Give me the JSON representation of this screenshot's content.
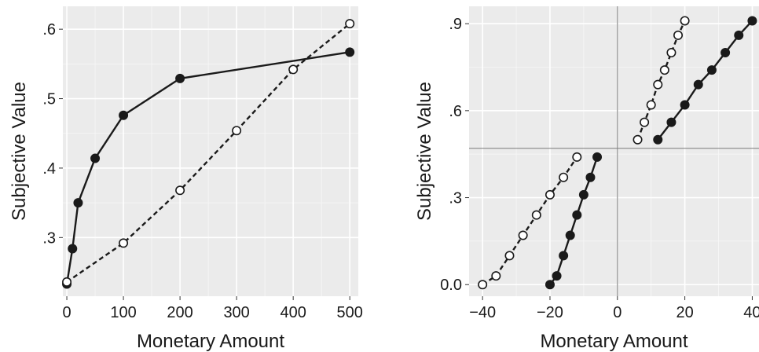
{
  "chart_data": [
    {
      "type": "line",
      "xlabel": "Monetary Amount",
      "ylabel": "Subjective Value",
      "xlim": [
        -7,
        515
      ],
      "ylim": [
        0.2155,
        0.633
      ],
      "xticks": [
        0,
        100,
        200,
        300,
        400,
        500
      ],
      "xtick_labels": [
        "0",
        "100",
        "200",
        "300",
        "400",
        "500"
      ],
      "yticks": [
        0.3,
        0.4,
        0.5,
        0.6
      ],
      "ytick_labels": [
        ".3",
        ".4",
        ".5",
        ".6"
      ],
      "grid": true,
      "background": "#ebebeb",
      "series": [
        {
          "style": "solid",
          "marker": "filled-circle",
          "color": "#1a1a1a",
          "x": [
            0,
            10,
            20,
            50,
            100,
            200,
            500
          ],
          "y": [
            0.233,
            0.284,
            0.35,
            0.414,
            0.476,
            0.529,
            0.567
          ]
        },
        {
          "style": "dashed",
          "marker": "open-circle",
          "color": "#1a1a1a",
          "x": [
            0,
            100,
            200,
            300,
            400,
            500
          ],
          "y": [
            0.236,
            0.292,
            0.368,
            0.454,
            0.542,
            0.608
          ]
        }
      ]
    },
    {
      "type": "line",
      "xlabel": "Monetary Amount",
      "ylabel": "Subjective Value",
      "xlim": [
        -44,
        42
      ],
      "ylim": [
        -0.04,
        0.96
      ],
      "xticks": [
        -40,
        -20,
        0,
        20,
        40
      ],
      "xtick_labels": [
        "−40",
        "−20",
        "0",
        "20",
        "40"
      ],
      "yticks": [
        0.0,
        0.3,
        0.6,
        0.9
      ],
      "ytick_labels": [
        "0.0",
        ".3",
        ".6",
        ".9"
      ],
      "reference_lines": {
        "x": 0,
        "y": 0.47
      },
      "grid": true,
      "background": "#ebebeb",
      "series": [
        {
          "style": "solid",
          "marker": "filled-circle",
          "color": "#1a1a1a",
          "x": [
            -20,
            -18,
            -16,
            -14,
            -12,
            -10,
            -8,
            -6
          ],
          "y": [
            0.0,
            0.03,
            0.1,
            0.17,
            0.24,
            0.31,
            0.37,
            0.44
          ]
        },
        {
          "style": "dashed",
          "marker": "open-circle",
          "color": "#1a1a1a",
          "x": [
            -40,
            -36,
            -32,
            -28,
            -24,
            -20,
            -16,
            -12
          ],
          "y": [
            0.0,
            0.03,
            0.1,
            0.17,
            0.24,
            0.31,
            0.37,
            0.44
          ]
        },
        {
          "style": "solid",
          "marker": "filled-circle",
          "color": "#1a1a1a",
          "x": [
            12,
            16,
            20,
            24,
            28,
            32,
            36,
            40
          ],
          "y": [
            0.5,
            0.56,
            0.62,
            0.69,
            0.74,
            0.8,
            0.86,
            0.91
          ]
        },
        {
          "style": "dashed",
          "marker": "open-circle",
          "color": "#1a1a1a",
          "x": [
            6,
            8,
            10,
            12,
            14,
            16,
            18,
            20
          ],
          "y": [
            0.5,
            0.56,
            0.62,
            0.69,
            0.74,
            0.8,
            0.86,
            0.91
          ]
        }
      ]
    }
  ]
}
